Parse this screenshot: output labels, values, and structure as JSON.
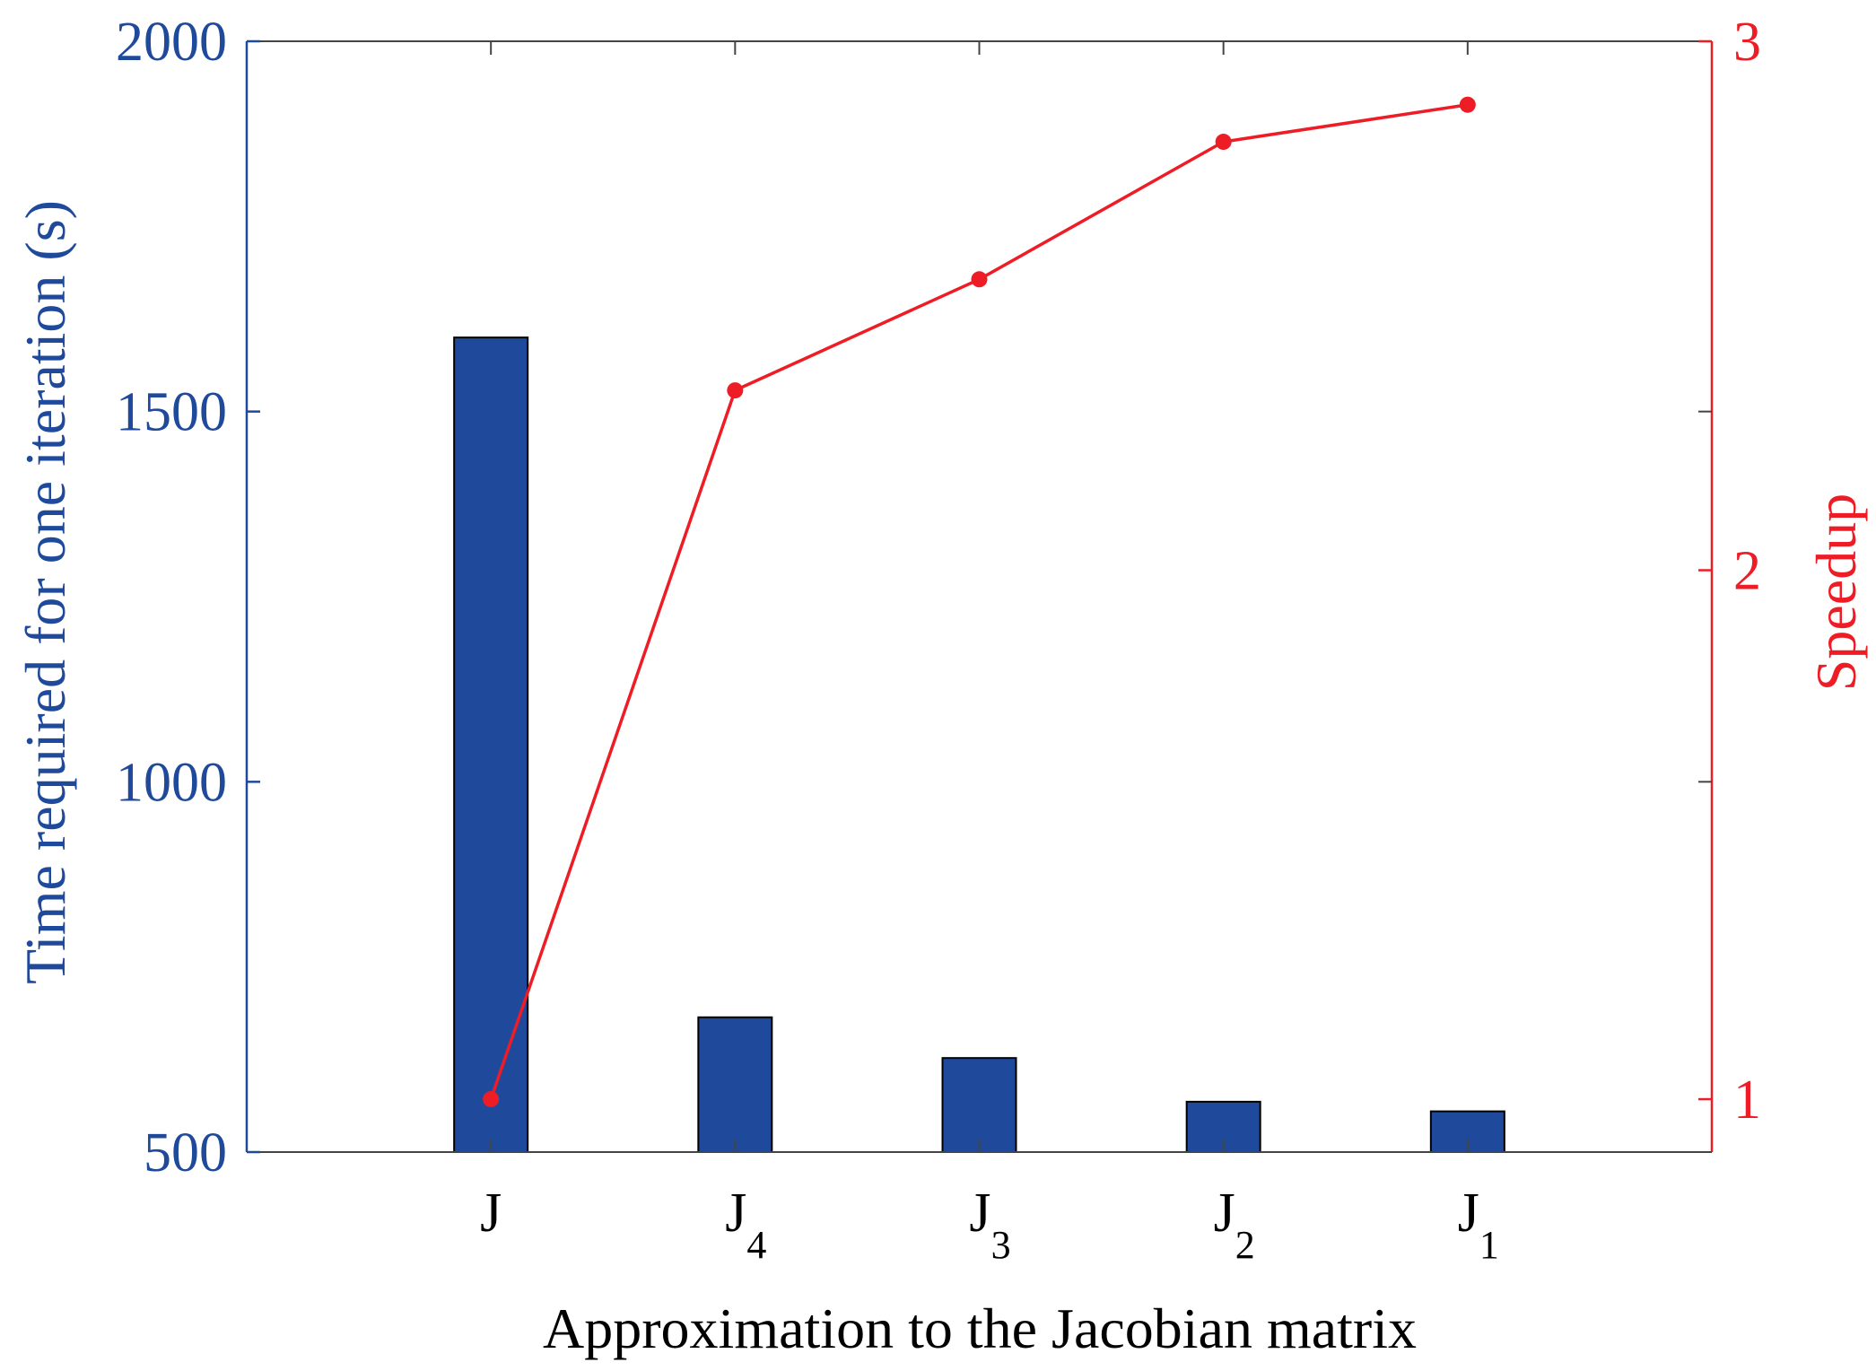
{
  "chart_data": {
    "type": "bar+line",
    "xlabel": "Approximation to the Jacobian matrix",
    "categories": [
      {
        "base": "J",
        "sub": ""
      },
      {
        "base": "J",
        "sub": "4"
      },
      {
        "base": "J",
        "sub": "3"
      },
      {
        "base": "J",
        "sub": "2"
      },
      {
        "base": "J",
        "sub": "1"
      }
    ],
    "left_axis": {
      "label": "Time required for one iteration (s)",
      "ylim": [
        500,
        2000
      ],
      "ticks": [
        500,
        1000,
        1500,
        2000
      ],
      "color": "#1f4a9c"
    },
    "right_axis": {
      "label": "Speedup",
      "ylim": [
        0.9,
        3
      ],
      "ticks": [
        1,
        2,
        3
      ],
      "color": "#ee1c25"
    },
    "bars": {
      "axis": "left",
      "values": [
        1600,
        682,
        627,
        568,
        555
      ],
      "color": "#1f4a9c"
    },
    "line": {
      "axis": "right",
      "values": [
        1.0,
        2.34,
        2.55,
        2.81,
        2.88
      ],
      "color": "#ee1c25"
    },
    "grid": false,
    "legend": "none"
  }
}
